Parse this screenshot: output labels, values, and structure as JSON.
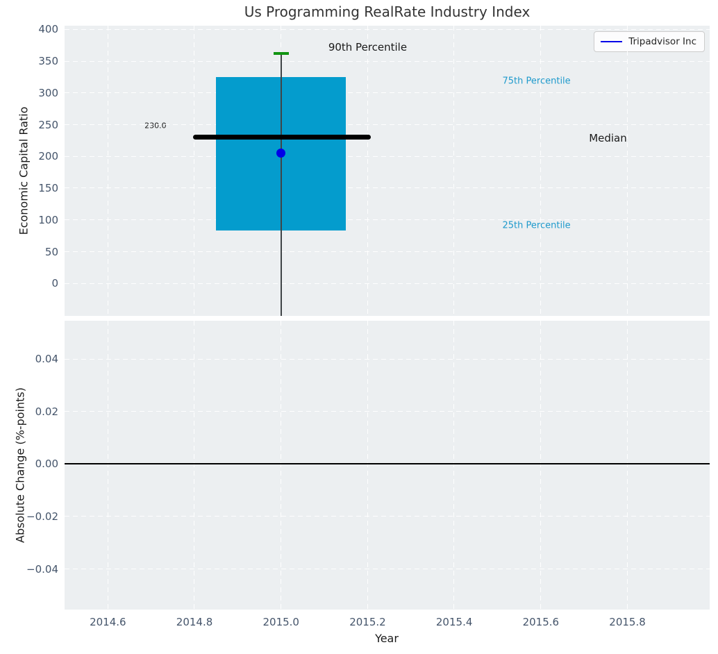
{
  "figure": {
    "background": "#ffffff",
    "plot_background": "#eceff1",
    "grid_color": "#ffffff",
    "tick_color": "#44546a",
    "title_color": "#333333"
  },
  "chart_data": [
    {
      "type": "box",
      "title": "Us Programming RealRate Industry Index",
      "ylabel": "Economic Capital Ratio",
      "xlim": [
        2014.5,
        2015.99
      ],
      "ylim": [
        -51,
        406
      ],
      "yticks": [
        0,
        50,
        100,
        150,
        200,
        250,
        300,
        350,
        400
      ],
      "ytick_labels": [
        "0",
        "50",
        "100",
        "150",
        "200",
        "250",
        "300",
        "350",
        "400"
      ],
      "xticks": [
        2014.6,
        2014.8,
        2015.0,
        2015.2,
        2015.4,
        2015.6,
        2015.8
      ],
      "grid": true,
      "legend": {
        "position": "upper right",
        "entries": [
          {
            "label": "Tripadvisor Inc",
            "color": "#0000e8"
          }
        ]
      },
      "box": {
        "center_x": 2015.0,
        "left": 2014.85,
        "right": 2015.15,
        "q1": 84,
        "median": 230.0,
        "q3": 325,
        "p90": 362,
        "whisker_bottom_clipped": true,
        "fill_color": "#049ccd",
        "cap_color": "#119411",
        "cap_x1": 2014.982,
        "cap_x2": 2015.018,
        "median_color": "#000000",
        "median_x1": 2014.797,
        "median_x2": 2015.208
      },
      "company_point": {
        "label": "Tripadvisor Inc",
        "x": 2015.0,
        "y": 205,
        "color": "#0000e8"
      },
      "annotations": [
        {
          "text": "230.0",
          "x": 2014.71,
          "y": 249,
          "color": "#1a1a1a",
          "size": 11
        },
        {
          "text": "90th Percentile",
          "x": 2015.2,
          "y": 372,
          "color": "#1a1a1a",
          "size": 15
        },
        {
          "text": "75th Percentile",
          "x": 2015.59,
          "y": 318,
          "color": "#1f9acc",
          "size": 13
        },
        {
          "text": "Median",
          "x": 2015.755,
          "y": 229,
          "color": "#1a1a1a",
          "size": 15
        },
        {
          "text": "25th Percentile",
          "x": 2015.59,
          "y": 91,
          "color": "#1f9acc",
          "size": 13
        }
      ]
    },
    {
      "type": "line",
      "ylabel": "Absolute Change (%-points)",
      "xlabel": "Year",
      "xlim": [
        2014.5,
        2015.99
      ],
      "ylim": [
        -0.0554,
        0.0546
      ],
      "yticks": [
        -0.04,
        -0.02,
        0.0,
        0.02,
        0.04
      ],
      "ytick_labels": [
        "−0.04",
        "−0.02",
        "0.00",
        "0.02",
        "0.04"
      ],
      "xticks": [
        2014.6,
        2014.8,
        2015.0,
        2015.2,
        2015.4,
        2015.6,
        2015.8
      ],
      "xtick_labels": [
        "2014.6",
        "2014.8",
        "2015.0",
        "2015.2",
        "2015.4",
        "2015.6",
        "2015.8"
      ],
      "grid": true,
      "zero_line": 0.0,
      "series": []
    }
  ]
}
